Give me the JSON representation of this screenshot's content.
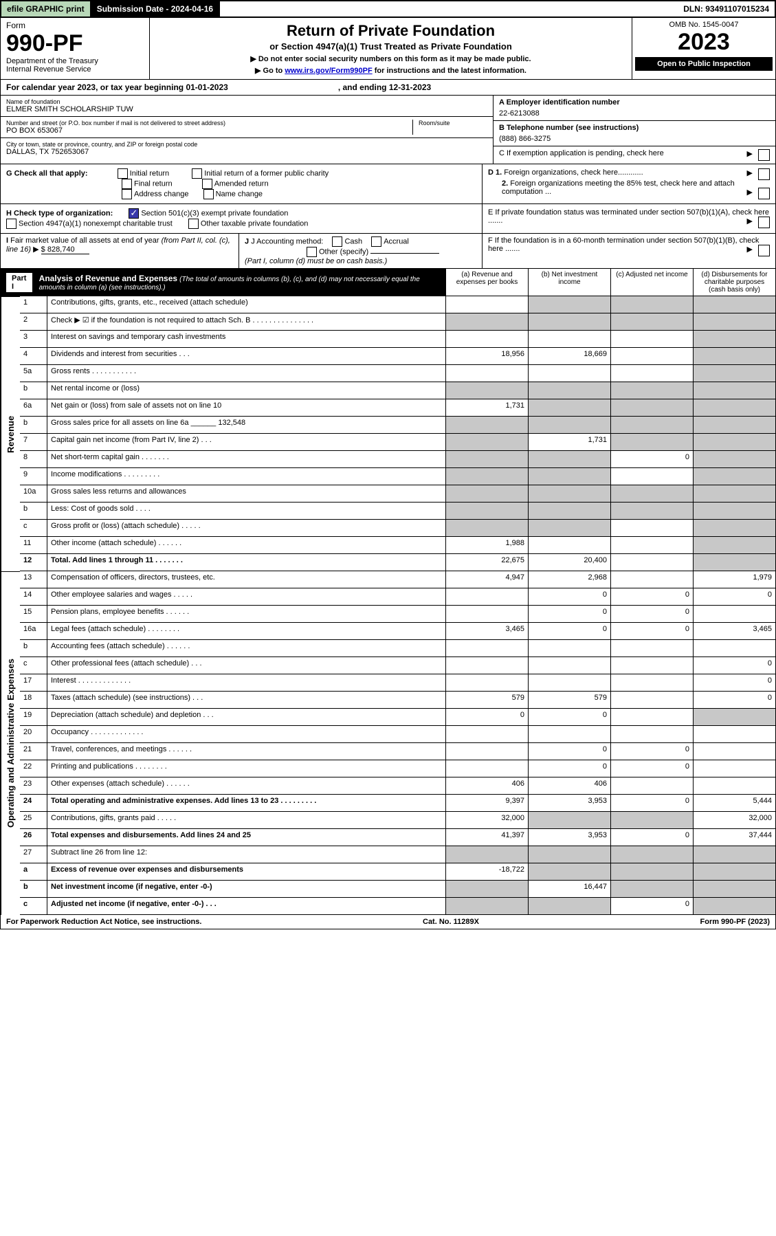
{
  "topbar": {
    "efile": "efile GRAPHIC print",
    "submission": "Submission Date - 2024-04-16",
    "dln": "DLN: 93491107015234"
  },
  "header": {
    "form_label": "Form",
    "form_no": "990-PF",
    "dept": "Department of the Treasury",
    "irs": "Internal Revenue Service",
    "title": "Return of Private Foundation",
    "subtitle": "or Section 4947(a)(1) Trust Treated as Private Foundation",
    "note1": "▶ Do not enter social security numbers on this form as it may be made public.",
    "note2_pre": "▶ Go to ",
    "note2_link": "www.irs.gov/Form990PF",
    "note2_post": " for instructions and the latest information.",
    "omb": "OMB No. 1545-0047",
    "year": "2023",
    "open": "Open to Public Inspection"
  },
  "calendar": {
    "text": "For calendar year 2023, or tax year beginning 01-01-2023",
    "ending": ", and ending 12-31-2023"
  },
  "info": {
    "name_label": "Name of foundation",
    "name": "ELMER SMITH SCHOLARSHIP TUW",
    "addr_label": "Number and street (or P.O. box number if mail is not delivered to street address)",
    "addr": "PO BOX 653067",
    "room_label": "Room/suite",
    "city_label": "City or town, state or province, country, and ZIP or foreign postal code",
    "city": "DALLAS, TX  752653067",
    "ein_label": "A Employer identification number",
    "ein": "22-6213088",
    "tel_label": "B Telephone number (see instructions)",
    "tel": "(888) 866-3275",
    "c_label": "C If exemption application is pending, check here",
    "d1": "D 1. Foreign organizations, check here............",
    "d2": "2. Foreign organizations meeting the 85% test, check here and attach computation ...",
    "e_label": "E  If private foundation status was terminated under section 507(b)(1)(A), check here .......",
    "f_label": "F  If the foundation is in a 60-month termination under section 507(b)(1)(B), check here ......."
  },
  "g": {
    "label": "G Check all that apply:",
    "opts": [
      "Initial return",
      "Initial return of a former public charity",
      "Final return",
      "Amended return",
      "Address change",
      "Name change"
    ]
  },
  "h": {
    "label": "H Check type of organization:",
    "opt1": "Section 501(c)(3) exempt private foundation",
    "opt2": "Section 4947(a)(1) nonexempt charitable trust",
    "opt3": "Other taxable private foundation"
  },
  "i": {
    "label": "I Fair market value of all assets at end of year (from Part II, col. (c), line 16)",
    "value": "$  828,740"
  },
  "j": {
    "label": "J Accounting method:",
    "cash": "Cash",
    "accrual": "Accrual",
    "other": "Other (specify)",
    "note": "(Part I, column (d) must be on cash basis.)"
  },
  "part1": {
    "label": "Part I",
    "title": "Analysis of Revenue and Expenses",
    "title_note": "(The total of amounts in columns (b), (c), and (d) may not necessarily equal the amounts in column (a) (see instructions).)",
    "col_a": "(a)   Revenue and expenses per books",
    "col_b": "(b)   Net investment income",
    "col_c": "(c)   Adjusted net income",
    "col_d": "(d)  Disbursements for charitable purposes (cash basis only)",
    "side_rev": "Revenue",
    "side_exp": "Operating and Administrative Expenses"
  },
  "rows": [
    {
      "n": "1",
      "d": "Contributions, gifts, grants, etc., received (attach schedule)",
      "a": "",
      "b": "g",
      "c": "g",
      "dd": "g"
    },
    {
      "n": "2",
      "d": "Check ▶ ☑ if the foundation is not required to attach Sch. B     .   .   .   .   .   .   .   .   .   .   .   .   .   .   .",
      "a": "g",
      "b": "g",
      "c": "g",
      "dd": "g"
    },
    {
      "n": "3",
      "d": "Interest on savings and temporary cash investments",
      "a": "",
      "b": "",
      "c": "",
      "dd": "g"
    },
    {
      "n": "4",
      "d": "Dividends and interest from securities    .   .   .",
      "a": "18,956",
      "b": "18,669",
      "c": "",
      "dd": "g"
    },
    {
      "n": "5a",
      "d": "Gross rents    .   .   .   .   .   .   .   .   .   .   .",
      "a": "",
      "b": "",
      "c": "",
      "dd": "g"
    },
    {
      "n": "b",
      "d": "Net rental income or (loss)  ",
      "a": "g",
      "b": "g",
      "c": "g",
      "dd": "g"
    },
    {
      "n": "6a",
      "d": "Net gain or (loss) from sale of assets not on line 10",
      "a": "1,731",
      "b": "g",
      "c": "g",
      "dd": "g"
    },
    {
      "n": "b",
      "d": "Gross sales price for all assets on line 6a ______ 132,548",
      "a": "g",
      "b": "g",
      "c": "g",
      "dd": "g"
    },
    {
      "n": "7",
      "d": "Capital gain net income (from Part IV, line 2)   .   .   .",
      "a": "g",
      "b": "1,731",
      "c": "g",
      "dd": "g"
    },
    {
      "n": "8",
      "d": "Net short-term capital gain  .   .   .   .   .   .   .",
      "a": "g",
      "b": "g",
      "c": "0",
      "dd": "g"
    },
    {
      "n": "9",
      "d": "Income modifications  .   .   .   .   .   .   .   .   .",
      "a": "g",
      "b": "g",
      "c": "",
      "dd": "g"
    },
    {
      "n": "10a",
      "d": "Gross sales less returns and allowances",
      "a": "g",
      "b": "g",
      "c": "g",
      "dd": "g"
    },
    {
      "n": "b",
      "d": "Less: Cost of goods sold    .   .   .   .",
      "a": "g",
      "b": "g",
      "c": "g",
      "dd": "g"
    },
    {
      "n": "c",
      "d": "Gross profit or (loss) (attach schedule)    .   .   .   .   .",
      "a": "g",
      "b": "g",
      "c": "",
      "dd": "g"
    },
    {
      "n": "11",
      "d": "Other income (attach schedule)   .   .   .   .   .   .",
      "a": "1,988",
      "b": "",
      "c": "",
      "dd": "g"
    },
    {
      "n": "12",
      "d": "Total. Add lines 1 through 11   .   .   .   .   .   .   .",
      "b2": true,
      "a": "22,675",
      "b": "20,400",
      "c": "",
      "dd": "g"
    },
    {
      "n": "13",
      "d": "Compensation of officers, directors, trustees, etc.",
      "a": "4,947",
      "b": "2,968",
      "c": "",
      "dd": "1,979"
    },
    {
      "n": "14",
      "d": "Other employee salaries and wages    .   .   .   .   .",
      "a": "",
      "b": "0",
      "c": "0",
      "dd": "0"
    },
    {
      "n": "15",
      "d": "Pension plans, employee benefits  .   .   .   .   .   .",
      "a": "",
      "b": "0",
      "c": "0",
      "dd": ""
    },
    {
      "n": "16a",
      "d": "Legal fees (attach schedule) .   .   .   .   .   .   .   .",
      "a": "3,465",
      "b": "0",
      "c": "0",
      "dd": "3,465"
    },
    {
      "n": "b",
      "d": "Accounting fees (attach schedule)  .   .   .   .   .   .",
      "a": "",
      "b": "",
      "c": "",
      "dd": ""
    },
    {
      "n": "c",
      "d": "Other professional fees (attach schedule)    .   .   .",
      "a": "",
      "b": "",
      "c": "",
      "dd": "0"
    },
    {
      "n": "17",
      "d": "Interest  .   .   .   .   .   .   .   .   .   .   .   .   .",
      "a": "",
      "b": "",
      "c": "",
      "dd": "0"
    },
    {
      "n": "18",
      "d": "Taxes (attach schedule) (see instructions)    .   .   .",
      "a": "579",
      "b": "579",
      "c": "",
      "dd": "0"
    },
    {
      "n": "19",
      "d": "Depreciation (attach schedule) and depletion    .   .   .",
      "a": "0",
      "b": "0",
      "c": "",
      "dd": "g"
    },
    {
      "n": "20",
      "d": "Occupancy .   .   .   .   .   .   .   .   .   .   .   .   .",
      "a": "",
      "b": "",
      "c": "",
      "dd": ""
    },
    {
      "n": "21",
      "d": "Travel, conferences, and meetings  .   .   .   .   .   .",
      "a": "",
      "b": "0",
      "c": "0",
      "dd": ""
    },
    {
      "n": "22",
      "d": "Printing and publications  .   .   .   .   .   .   .   .",
      "a": "",
      "b": "0",
      "c": "0",
      "dd": ""
    },
    {
      "n": "23",
      "d": "Other expenses (attach schedule)  .   .   .   .   .   .",
      "a": "406",
      "b": "406",
      "c": "",
      "dd": ""
    },
    {
      "n": "24",
      "d": "Total operating and administrative expenses. Add lines 13 to 23   .   .   .   .   .   .   .   .   .",
      "b2": true,
      "a": "9,397",
      "b": "3,953",
      "c": "0",
      "dd": "5,444"
    },
    {
      "n": "25",
      "d": "Contributions, gifts, grants paid    .   .   .   .   .",
      "a": "32,000",
      "b": "g",
      "c": "g",
      "dd": "32,000"
    },
    {
      "n": "26",
      "d": "Total expenses and disbursements. Add lines 24 and 25",
      "b2": true,
      "a": "41,397",
      "b": "3,953",
      "c": "0",
      "dd": "37,444"
    },
    {
      "n": "27",
      "d": "Subtract line 26 from line 12:",
      "a": "g",
      "b": "g",
      "c": "g",
      "dd": "g"
    },
    {
      "n": "a",
      "d": "Excess of revenue over expenses and disbursements",
      "b2": true,
      "a": "-18,722",
      "b": "g",
      "c": "g",
      "dd": "g"
    },
    {
      "n": "b",
      "d": "Net investment income (if negative, enter -0-)",
      "b2": true,
      "a": "g",
      "b": "16,447",
      "c": "g",
      "dd": "g"
    },
    {
      "n": "c",
      "d": "Adjusted net income (if negative, enter -0-)   .   .   .",
      "b2": true,
      "a": "g",
      "b": "g",
      "c": "0",
      "dd": "g"
    }
  ],
  "footer": {
    "left": "For Paperwork Reduction Act Notice, see instructions.",
    "mid": "Cat. No. 11289X",
    "right": "Form 990-PF (2023)"
  }
}
